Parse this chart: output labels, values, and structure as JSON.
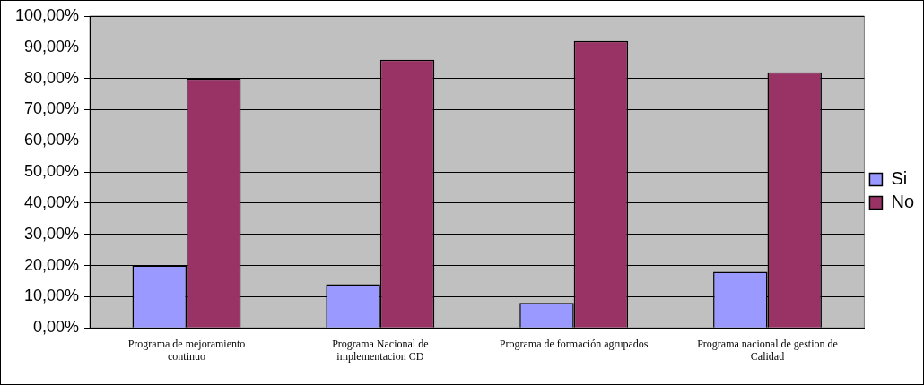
{
  "chart_data": {
    "type": "bar",
    "categories": [
      "Programa de mejoramiento continuo",
      "Programa Nacional de implementacion CD",
      "Programa de formación agrupados",
      "Programa nacional de gestion de Calidad"
    ],
    "series": [
      {
        "name": "Si",
        "color": "#9999ff",
        "values": [
          20,
          14,
          8,
          18
        ]
      },
      {
        "name": "No",
        "color": "#993366",
        "values": [
          80,
          86,
          92,
          82
        ]
      }
    ],
    "ylim": [
      0,
      100
    ],
    "yticks": [
      {
        "value": 0,
        "label": "0,00%"
      },
      {
        "value": 10,
        "label": "10,00%"
      },
      {
        "value": 20,
        "label": "20,00%"
      },
      {
        "value": 30,
        "label": "30,00%"
      },
      {
        "value": 40,
        "label": "40,00%"
      },
      {
        "value": 50,
        "label": "50,00%"
      },
      {
        "value": 60,
        "label": "60,00%"
      },
      {
        "value": 70,
        "label": "70,00%"
      },
      {
        "value": 80,
        "label": "80,00%"
      },
      {
        "value": 90,
        "label": "90,00%"
      },
      {
        "value": 100,
        "label": "100,00%"
      }
    ],
    "grid": "y",
    "legend": "right"
  }
}
